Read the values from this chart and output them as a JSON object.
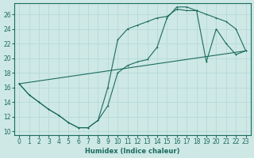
{
  "xlabel": "Humidex (Indice chaleur)",
  "xlim": [
    -0.5,
    23.5
  ],
  "ylim": [
    9.5,
    27.5
  ],
  "xticks": [
    0,
    1,
    2,
    3,
    4,
    5,
    6,
    7,
    8,
    9,
    10,
    11,
    12,
    13,
    14,
    15,
    16,
    17,
    18,
    19,
    20,
    21,
    22,
    23
  ],
  "yticks": [
    10,
    12,
    14,
    16,
    18,
    20,
    22,
    24,
    26
  ],
  "bg_color": "#cde8e5",
  "line_color": "#1c6b5e",
  "grid_color": "#b2d8d4",
  "line1_x": [
    0,
    1,
    2,
    3,
    4,
    5,
    6,
    7,
    8,
    9,
    10,
    11,
    12,
    13,
    14,
    15,
    16,
    17,
    18,
    19,
    20,
    21,
    22,
    23
  ],
  "line1_y": [
    16.5,
    15.0,
    14.0,
    13.0,
    12.2,
    11.2,
    10.5,
    10.5,
    11.5,
    13.5,
    18.0,
    19.0,
    19.5,
    19.8,
    21.5,
    25.5,
    27.0,
    27.0,
    26.5,
    19.5,
    24.0,
    22.0,
    20.5,
    21.0
  ],
  "line2_x": [
    0,
    1,
    2,
    3,
    4,
    5,
    6,
    7,
    8,
    9,
    10,
    11,
    12,
    13,
    14,
    15,
    16,
    17,
    18,
    19,
    20,
    21,
    22,
    23
  ],
  "line2_y": [
    16.5,
    15.0,
    14.0,
    13.0,
    12.2,
    11.2,
    10.5,
    10.5,
    11.5,
    16.0,
    22.5,
    24.0,
    24.5,
    25.0,
    25.5,
    25.7,
    26.7,
    26.5,
    26.5,
    26.0,
    25.5,
    25.0,
    24.0,
    21.0
  ],
  "line3_x": [
    0,
    23
  ],
  "line3_y": [
    16.5,
    21.0
  ]
}
